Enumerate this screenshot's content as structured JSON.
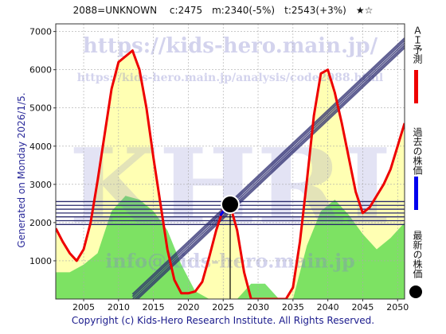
{
  "header": {
    "code": "2088=UNKNOWN",
    "current": "c:2475",
    "past": "m:2340(-5%)",
    "target": "t:2543(+3%)",
    "stars": "★☆"
  },
  "side_text": "Generated on Monday 2026/1/5.",
  "footer": "Copyright (c) Kids-Hero Research Institute. All Rights Reserved.",
  "watermarks": {
    "url": "https://kids-hero.main.jp/",
    "analysis_url": "https://kids-hero.main.jp/analysis/code2088.html",
    "brand": "KHRI",
    "email": "info@kids-hero.main.jp"
  },
  "legend": {
    "ai": "ＡＩ予測",
    "past": "過去の株価",
    "latest": "最新の株価"
  },
  "colors": {
    "ai_line": "#ee0000",
    "past_line": "#0000ee",
    "band": "#2a2a6e",
    "green": "#66dd55",
    "yellow": "#ffff99",
    "grid": "#aaaaaa"
  },
  "chart_data": {
    "type": "line",
    "xlim": [
      2001,
      2051
    ],
    "ylim": [
      0,
      7200
    ],
    "x_ticks": [
      2005,
      2010,
      2015,
      2020,
      2025,
      2030,
      2035,
      2040,
      2045,
      2050
    ],
    "y_ticks": [
      1000,
      2000,
      3000,
      4000,
      5000,
      6000,
      7000
    ],
    "grid": true,
    "series": [
      {
        "name": "ＡＩ予測",
        "x": [
          2001,
          2002,
          2003,
          2004,
          2005,
          2006,
          2007,
          2008,
          2009,
          2010,
          2011,
          2012,
          2013,
          2014,
          2015,
          2016,
          2017,
          2018,
          2019,
          2020,
          2021,
          2022,
          2023,
          2024,
          2025,
          2026,
          2027,
          2028,
          2029,
          2030,
          2031,
          2032,
          2033,
          2034,
          2035,
          2036,
          2037,
          2038,
          2039,
          2040,
          2041,
          2042,
          2043,
          2044,
          2045,
          2046,
          2047,
          2048,
          2049,
          2050,
          2051
        ],
        "y": [
          1850,
          1500,
          1200,
          1000,
          1300,
          2000,
          3100,
          4300,
          5500,
          6200,
          6350,
          6500,
          6000,
          5000,
          3700,
          2500,
          1300,
          500,
          150,
          150,
          200,
          450,
          1100,
          1800,
          2350,
          2450,
          1800,
          700,
          0,
          0,
          0,
          0,
          0,
          0,
          300,
          1500,
          3100,
          4800,
          5900,
          6000,
          5400,
          4600,
          3700,
          2800,
          2250,
          2400,
          2700,
          3000,
          3400,
          4000,
          4600
        ]
      },
      {
        "name": "過去の株価",
        "x": [
          2024.6,
          2025.0,
          2025.4,
          2025.8
        ],
        "y": [
          2180,
          2300,
          2380,
          2450
        ]
      }
    ],
    "latest": {
      "x": 2026,
      "y": 2475
    },
    "horizontal_bands": [
      1950,
      2050,
      2150,
      2250,
      2350,
      2450,
      2550
    ],
    "trend_line": {
      "x": [
        2012,
        2051
      ],
      "y": [
        0,
        6700
      ]
    },
    "green_area": {
      "x": [
        2001,
        2003,
        2005,
        2007,
        2009,
        2011,
        2013,
        2015,
        2017,
        2019,
        2021,
        2023,
        2025,
        2027,
        2029,
        2031,
        2033,
        2035,
        2037,
        2039,
        2041,
        2043,
        2045,
        2047,
        2049,
        2051
      ],
      "y": [
        700,
        700,
        900,
        1200,
        2300,
        2700,
        2600,
        2300,
        1800,
        900,
        200,
        0,
        0,
        0,
        400,
        400,
        0,
        0,
        1400,
        2300,
        2600,
        2200,
        1700,
        1300,
        1600,
        2000
      ]
    }
  }
}
